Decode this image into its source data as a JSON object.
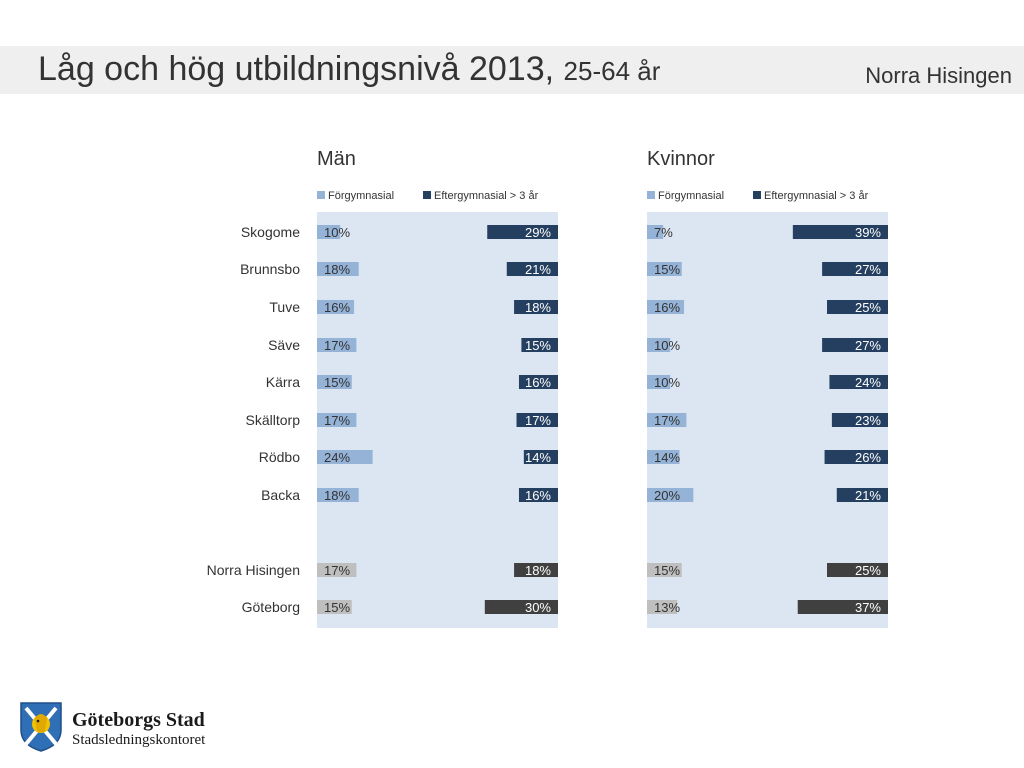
{
  "header": {
    "title_main": "Låg och hög utbildningsnivå 2013,",
    "title_sub": "25-64 år",
    "region": "Norra Hisingen"
  },
  "chart_data": {
    "type": "bar",
    "categories": [
      "Skogome",
      "Brunnsbo",
      "Tuve",
      "Säve",
      "Kärra",
      "Skälltorp",
      "Rödbo",
      "Backa",
      "Norra Hisingen",
      "Göteborg"
    ],
    "panels": [
      {
        "title": "Män",
        "legend": [
          "Förgymnasial",
          "Eftergymnasial > 3 år"
        ],
        "series": [
          {
            "name": "Förgymnasial",
            "values": [
              10,
              18,
              16,
              17,
              15,
              17,
              24,
              18,
              17,
              15
            ]
          },
          {
            "name": "Eftergymnasial > 3 år",
            "values": [
              29,
              21,
              18,
              15,
              16,
              17,
              14,
              16,
              18,
              30
            ]
          }
        ],
        "labels_low": [
          "10%",
          "18%",
          "16%",
          "17%",
          "15%",
          "17%",
          "24%",
          "18%",
          "17%",
          "15%"
        ],
        "labels_high": [
          "29%",
          "21%",
          "18%",
          "15%",
          "16%",
          "17%",
          "14%",
          "16%",
          "18%",
          "30%"
        ]
      },
      {
        "title": "Kvinnor",
        "legend": [
          "Förgymnasial",
          "Eftergymnasial > 3 år"
        ],
        "series": [
          {
            "name": "Förgymnasial",
            "values": [
              7,
              15,
              16,
              10,
              10,
              17,
              14,
              20,
              15,
              13
            ]
          },
          {
            "name": "Eftergymnasial > 3 år",
            "values": [
              39,
              27,
              25,
              27,
              24,
              23,
              26,
              21,
              25,
              37
            ]
          }
        ],
        "labels_low": [
          "7%",
          "15%",
          "16%",
          "10%",
          "10%",
          "17%",
          "14%",
          "20%",
          "15%",
          "13%"
        ],
        "labels_high": [
          "39%",
          "27%",
          "25%",
          "27%",
          "24%",
          "23%",
          "26%",
          "21%",
          "25%",
          "37%"
        ]
      }
    ],
    "colors": {
      "panel_bg": "#dce6f2",
      "low_bar": "#95b3d7",
      "high_bar": "#243f60",
      "summary_low": "#bfbfbf",
      "summary_high": "#404040"
    }
  },
  "logo": {
    "name": "Göteborgs Stad",
    "dept": "Stadsledningskontoret",
    "icon": "lion-crest-icon"
  }
}
